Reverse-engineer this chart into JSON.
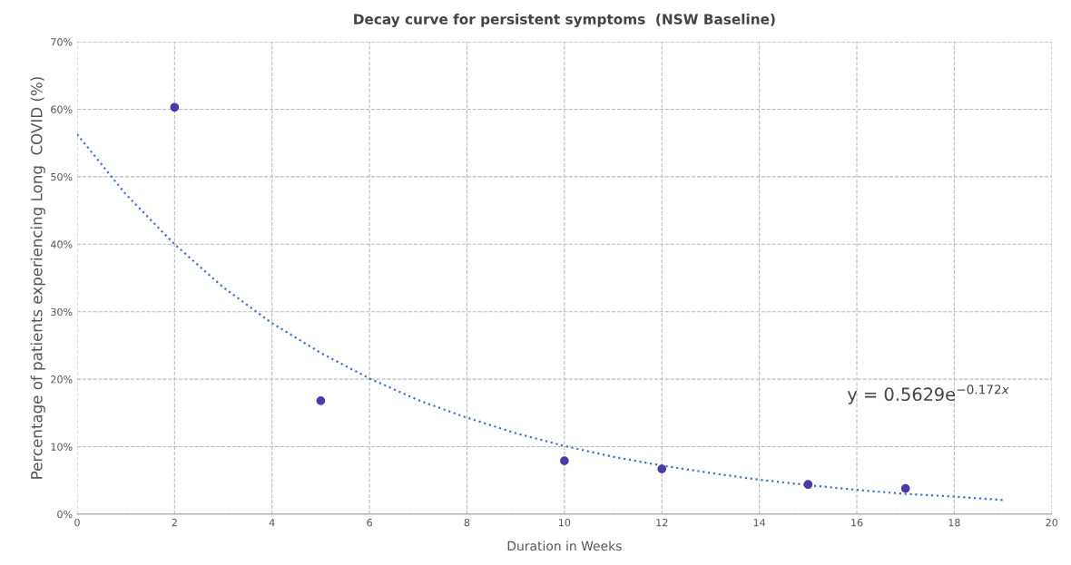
{
  "chart_data": {
    "type": "scatter",
    "title": "Decay curve for persistent symptoms  (NSW Baseline)",
    "xlabel": "Duration in Weeks",
    "ylabel": "Percentage of patients experiencing Long  COVID (%)",
    "x": [
      2,
      5,
      10,
      12,
      15,
      17
    ],
    "series": [
      {
        "color": "#4b3aa8",
        "marker": "circle",
        "values": [
          60.3,
          16.8,
          7.9,
          6.7,
          4.4,
          3.8
        ]
      },
      {
        "type": "line",
        "color": "#4472c4",
        "line_style": "dotted",
        "marker": "none",
        "x": [
          0,
          1,
          2,
          3,
          4,
          5,
          6,
          7,
          8,
          9,
          10,
          11,
          12,
          13,
          14,
          15,
          16,
          17,
          18,
          19
        ],
        "values": [
          56.3,
          47.4,
          40.0,
          33.6,
          28.3,
          23.9,
          20.1,
          16.9,
          14.3,
          12.0,
          10.1,
          8.5,
          7.2,
          6.1,
          5.1,
          4.3,
          3.6,
          3.0,
          2.6,
          2.1
        ]
      }
    ],
    "annotations": [
      "y = 0.5629e$^{−0.172x}$"
    ],
    "xlim": [
      0,
      20
    ],
    "xticks": [
      0,
      2,
      4,
      6,
      8,
      10,
      12,
      14,
      16,
      18,
      20
    ],
    "ylim": [
      0,
      70
    ],
    "yticks": [
      {
        "value": 0,
        "label": "0%"
      },
      {
        "value": 10,
        "label": "10%"
      },
      {
        "value": 20,
        "label": "20%"
      },
      {
        "value": 30,
        "label": "30%"
      },
      {
        "value": 40,
        "label": "40%"
      },
      {
        "value": 50,
        "label": "50%"
      },
      {
        "value": 60,
        "label": "60%"
      },
      {
        "value": 70,
        "label": "70%"
      }
    ],
    "grid": true
  }
}
